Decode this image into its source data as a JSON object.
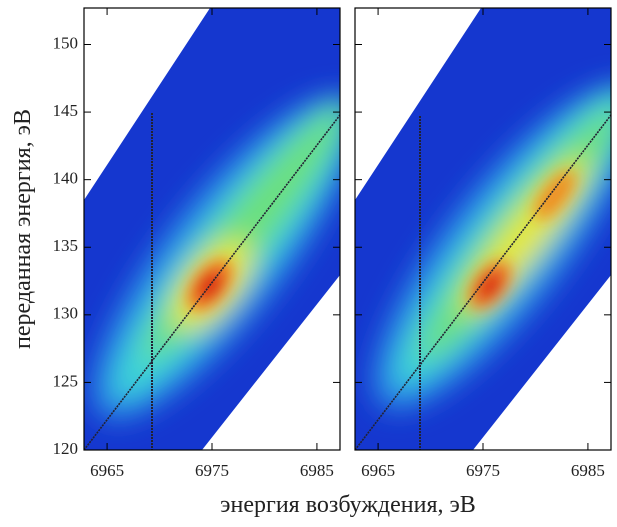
{
  "chart_data": [
    {
      "type": "heatmap",
      "xlabel": "энергия возбуждения, эВ",
      "ylabel": "переданная энергия, эВ",
      "xlim": [
        6962.8,
        6987.2
      ],
      "ylim": [
        120,
        152.7
      ],
      "xticks": [
        6965,
        6975,
        6985
      ],
      "yticks": [
        120,
        125,
        130,
        135,
        140,
        145,
        150
      ]
    },
    {
      "type": "heatmap",
      "xlim": [
        6962.8,
        6987.2
      ],
      "ylim": [
        120,
        152.7
      ],
      "xticks": [
        6965,
        6975,
        6985
      ],
      "yticks": [
        120,
        125,
        130,
        135,
        140,
        145,
        150
      ]
    }
  ]
}
